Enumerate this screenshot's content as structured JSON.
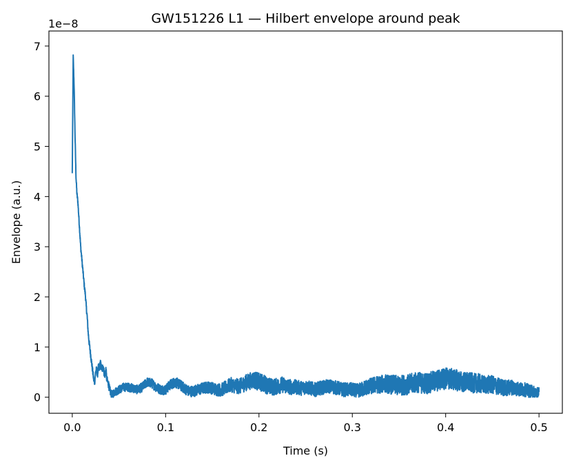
{
  "chart_data": {
    "type": "line",
    "title": "GW151226 L1 — Hilbert envelope around peak",
    "xlabel": "Time (s)",
    "ylabel": "Envelope (a.u.)",
    "y_offset_label": "1e−8",
    "xlim": [
      -0.025,
      0.525
    ],
    "ylim": [
      -0.32,
      7.3
    ],
    "xticks": [
      {
        "value": 0.0,
        "label": "0.0"
      },
      {
        "value": 0.1,
        "label": "0.1"
      },
      {
        "value": 0.2,
        "label": "0.2"
      },
      {
        "value": 0.3,
        "label": "0.3"
      },
      {
        "value": 0.4,
        "label": "0.4"
      },
      {
        "value": 0.5,
        "label": "0.5"
      }
    ],
    "yticks": [
      {
        "value": 0,
        "label": "0"
      },
      {
        "value": 1,
        "label": "1"
      },
      {
        "value": 2,
        "label": "2"
      },
      {
        "value": 3,
        "label": "3"
      },
      {
        "value": 4,
        "label": "4"
      },
      {
        "value": 5,
        "label": "5"
      },
      {
        "value": 6,
        "label": "6"
      },
      {
        "value": 7,
        "label": "7"
      }
    ],
    "grid": false,
    "line_color": "#1f77b4",
    "series": [
      {
        "name": "",
        "points": [
          [
            0.0,
            4.45
          ],
          [
            0.001,
            6.8
          ],
          [
            0.002,
            6.2
          ],
          [
            0.003,
            5.2
          ],
          [
            0.004,
            4.4
          ],
          [
            0.005,
            4.05
          ],
          [
            0.006,
            3.9
          ],
          [
            0.007,
            3.6
          ],
          [
            0.008,
            3.3
          ],
          [
            0.009,
            3.0
          ],
          [
            0.01,
            2.8
          ],
          [
            0.011,
            2.6
          ],
          [
            0.012,
            2.4
          ],
          [
            0.013,
            2.2
          ],
          [
            0.014,
            2.05
          ],
          [
            0.015,
            1.8
          ],
          [
            0.016,
            1.6
          ],
          [
            0.017,
            1.3
          ],
          [
            0.018,
            1.1
          ],
          [
            0.019,
            0.95
          ],
          [
            0.02,
            0.8
          ],
          [
            0.021,
            0.65
          ],
          [
            0.022,
            0.5
          ],
          [
            0.023,
            0.35
          ],
          [
            0.024,
            0.3
          ],
          [
            0.025,
            0.5
          ],
          [
            0.026,
            0.55
          ],
          [
            0.027,
            0.45
          ],
          [
            0.028,
            0.6
          ],
          [
            0.029,
            0.55
          ],
          [
            0.03,
            0.7
          ],
          [
            0.031,
            0.6
          ],
          [
            0.032,
            0.55
          ],
          [
            0.033,
            0.65
          ],
          [
            0.034,
            0.5
          ],
          [
            0.035,
            0.45
          ],
          [
            0.036,
            0.55
          ],
          [
            0.037,
            0.35
          ],
          [
            0.038,
            0.3
          ],
          [
            0.039,
            0.25
          ],
          [
            0.04,
            0.15
          ],
          [
            0.041,
            0.1
          ],
          [
            0.042,
            0.05
          ],
          [
            0.043,
            0.05
          ],
          [
            0.045,
            0.1
          ],
          [
            0.05,
            0.15
          ],
          [
            0.055,
            0.2
          ],
          [
            0.06,
            0.2
          ],
          [
            0.065,
            0.18
          ],
          [
            0.07,
            0.15
          ],
          [
            0.075,
            0.2
          ],
          [
            0.08,
            0.3
          ],
          [
            0.085,
            0.28
          ],
          [
            0.09,
            0.2
          ],
          [
            0.095,
            0.15
          ],
          [
            0.1,
            0.15
          ],
          [
            0.105,
            0.25
          ],
          [
            0.11,
            0.3
          ],
          [
            0.115,
            0.25
          ],
          [
            0.12,
            0.18
          ],
          [
            0.125,
            0.12
          ],
          [
            0.13,
            0.12
          ],
          [
            0.135,
            0.15
          ],
          [
            0.14,
            0.18
          ],
          [
            0.145,
            0.2
          ],
          [
            0.15,
            0.18
          ],
          [
            0.155,
            0.15
          ],
          [
            0.16,
            0.15
          ],
          [
            0.165,
            0.2
          ],
          [
            0.17,
            0.25
          ],
          [
            0.175,
            0.22
          ],
          [
            0.18,
            0.22
          ],
          [
            0.185,
            0.28
          ],
          [
            0.19,
            0.32
          ],
          [
            0.195,
            0.35
          ],
          [
            0.2,
            0.3
          ],
          [
            0.205,
            0.28
          ],
          [
            0.21,
            0.22
          ],
          [
            0.215,
            0.2
          ],
          [
            0.22,
            0.22
          ],
          [
            0.225,
            0.25
          ],
          [
            0.23,
            0.22
          ],
          [
            0.235,
            0.2
          ],
          [
            0.24,
            0.2
          ],
          [
            0.245,
            0.18
          ],
          [
            0.25,
            0.2
          ],
          [
            0.255,
            0.18
          ],
          [
            0.26,
            0.15
          ],
          [
            0.265,
            0.18
          ],
          [
            0.27,
            0.2
          ],
          [
            0.275,
            0.22
          ],
          [
            0.28,
            0.2
          ],
          [
            0.285,
            0.18
          ],
          [
            0.29,
            0.15
          ],
          [
            0.295,
            0.15
          ],
          [
            0.3,
            0.15
          ],
          [
            0.305,
            0.12
          ],
          [
            0.31,
            0.15
          ],
          [
            0.315,
            0.2
          ],
          [
            0.32,
            0.22
          ],
          [
            0.325,
            0.25
          ],
          [
            0.33,
            0.25
          ],
          [
            0.335,
            0.28
          ],
          [
            0.34,
            0.25
          ],
          [
            0.345,
            0.25
          ],
          [
            0.35,
            0.22
          ],
          [
            0.355,
            0.25
          ],
          [
            0.36,
            0.25
          ],
          [
            0.365,
            0.28
          ],
          [
            0.37,
            0.3
          ],
          [
            0.375,
            0.28
          ],
          [
            0.38,
            0.28
          ],
          [
            0.385,
            0.3
          ],
          [
            0.39,
            0.32
          ],
          [
            0.395,
            0.35
          ],
          [
            0.4,
            0.38
          ],
          [
            0.405,
            0.36
          ],
          [
            0.41,
            0.35
          ],
          [
            0.415,
            0.32
          ],
          [
            0.42,
            0.3
          ],
          [
            0.425,
            0.3
          ],
          [
            0.43,
            0.28
          ],
          [
            0.435,
            0.28
          ],
          [
            0.44,
            0.25
          ],
          [
            0.445,
            0.25
          ],
          [
            0.45,
            0.25
          ],
          [
            0.455,
            0.22
          ],
          [
            0.46,
            0.2
          ],
          [
            0.465,
            0.18
          ],
          [
            0.47,
            0.2
          ],
          [
            0.475,
            0.18
          ],
          [
            0.48,
            0.15
          ],
          [
            0.485,
            0.15
          ],
          [
            0.49,
            0.12
          ],
          [
            0.495,
            0.1
          ],
          [
            0.5,
            0.08
          ]
        ],
        "noise_amplitude": [
          [
            0.0,
            0.05
          ],
          [
            0.04,
            0.08
          ],
          [
            0.1,
            0.1
          ],
          [
            0.15,
            0.12
          ],
          [
            0.2,
            0.18
          ],
          [
            0.25,
            0.14
          ],
          [
            0.3,
            0.14
          ],
          [
            0.35,
            0.2
          ],
          [
            0.4,
            0.22
          ],
          [
            0.45,
            0.18
          ],
          [
            0.5,
            0.12
          ]
        ]
      }
    ]
  }
}
